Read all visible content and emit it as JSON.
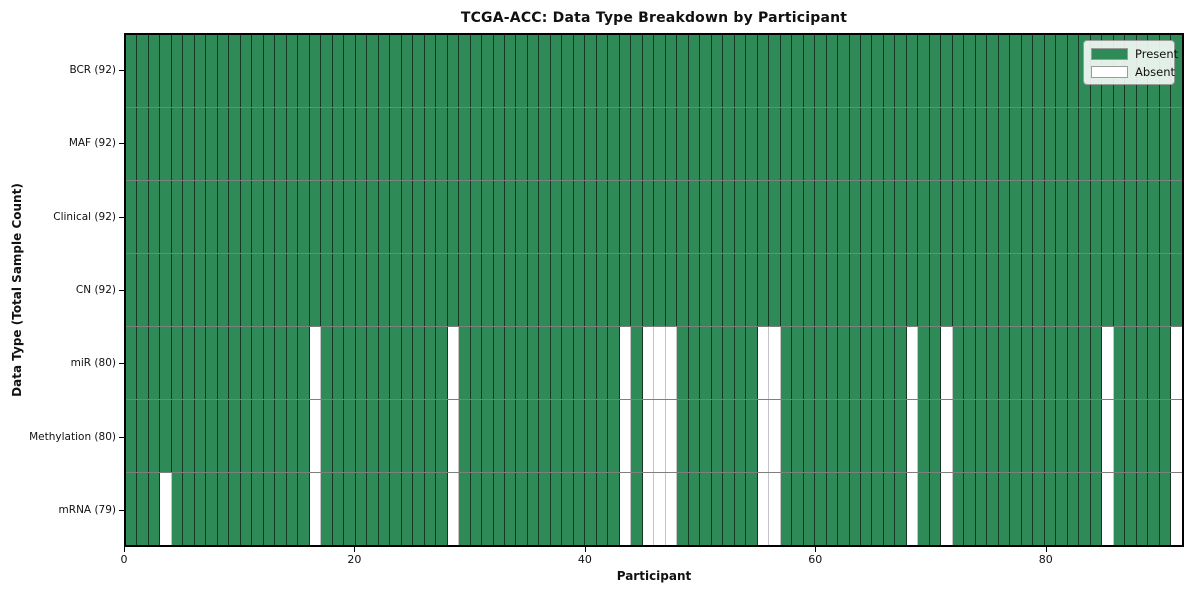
{
  "chart_data": {
    "type": "heatmap",
    "title": "TCGA-ACC: Data Type Breakdown by Participant",
    "xlabel": "Participant",
    "ylabel": "Data Type (Total Sample Count)",
    "n_participants": 92,
    "xlim": [
      0,
      92
    ],
    "x_ticks": [
      0,
      20,
      40,
      60,
      80
    ],
    "grid": false,
    "legend_position": "upper right",
    "rows": [
      {
        "label": "BCR (92)",
        "data_type": "BCR",
        "present_count": 92,
        "absent_participants": []
      },
      {
        "label": "MAF (92)",
        "data_type": "MAF",
        "present_count": 92,
        "absent_participants": []
      },
      {
        "label": "Clinical (92)",
        "data_type": "Clinical",
        "present_count": 92,
        "absent_participants": []
      },
      {
        "label": "CN (92)",
        "data_type": "CN",
        "present_count": 92,
        "absent_participants": []
      },
      {
        "label": "miR (80)",
        "data_type": "miR",
        "present_count": 80,
        "absent_participants": [
          16,
          28,
          43,
          45,
          46,
          47,
          55,
          56,
          68,
          71,
          85,
          91
        ]
      },
      {
        "label": "Methylation (80)",
        "data_type": "Methylation",
        "present_count": 80,
        "absent_participants": [
          16,
          28,
          43,
          45,
          46,
          47,
          55,
          56,
          68,
          71,
          85,
          91
        ]
      },
      {
        "label": "mRNA (79)",
        "data_type": "mRNA",
        "present_count": 79,
        "absent_participants": [
          3,
          16,
          28,
          43,
          45,
          46,
          47,
          55,
          56,
          68,
          71,
          85,
          91
        ]
      }
    ],
    "legend": [
      {
        "label": "Present",
        "color": "#2e8b57"
      },
      {
        "label": "Absent",
        "color": "#ffffff"
      }
    ],
    "colors": {
      "present": "#2e8b57",
      "absent": "#ffffff",
      "cell_edge": "#14301f",
      "absent_edge": "#c6c6c6",
      "spine": "#000000",
      "background": "#ffffff"
    }
  }
}
